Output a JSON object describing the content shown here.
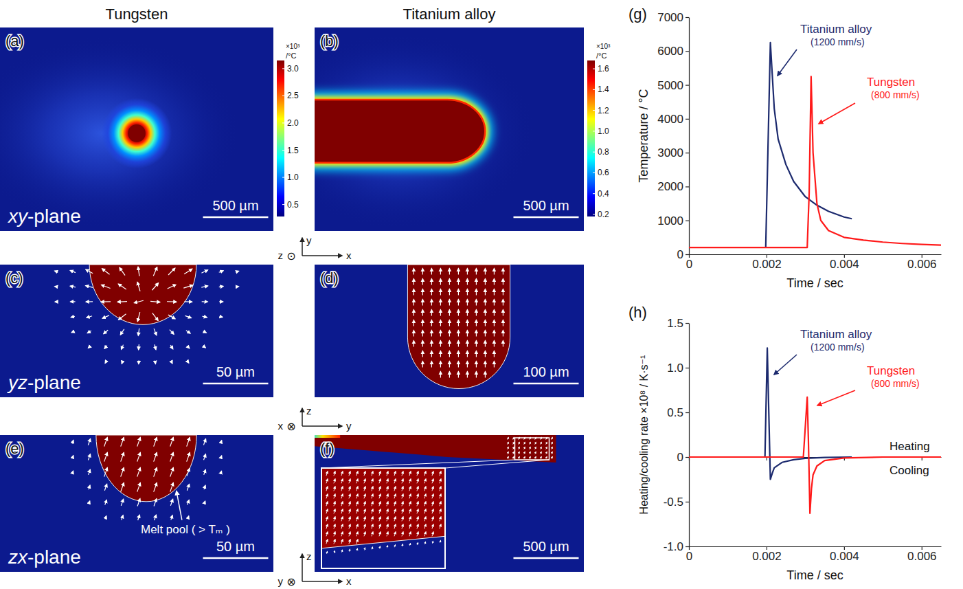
{
  "chart_data": [
    {
      "type": "field",
      "panel": "(a)",
      "heading": "Tungsten",
      "plane": "xy-plane",
      "marker": "circle",
      "melt_pool": {
        "width": 135
      },
      "scale_bar": {
        "value": 500,
        "label": "500 µm"
      },
      "colorbar": {
        "title": [
          "×10³",
          "/°C"
        ],
        "range": [
          0.28,
          3.15
        ],
        "ticks": [
          0.5,
          {
            "value": 1,
            "label": "1.0"
          },
          1.5,
          {
            "value": 2,
            "label": "2.0"
          },
          2.5,
          {
            "value": 3,
            "label": "3.0"
          }
        ]
      }
    },
    {
      "type": "field",
      "panel": "(b)",
      "heading": "Titanium alloy",
      "marker": "slot",
      "melt_pool": {
        "width": 470,
        "length": 1300
      },
      "scale_bar": {
        "value": 500,
        "label": "500 µm"
      },
      "colorbar": {
        "title": [
          "×10³",
          "/°C"
        ],
        "range": [
          0.18,
          1.68
        ],
        "ticks": [
          0.2,
          0.4,
          0.6,
          0.8,
          {
            "value": 1,
            "label": "1.0"
          },
          1.2,
          1.4,
          1.6
        ]
      },
      "axes": {
        "up": "y",
        "right": "x",
        "normal": "z",
        "normal_symbol": "⊙"
      }
    },
    {
      "type": "field",
      "panel": "(c)",
      "plane": "yz-plane",
      "marker": "bowl",
      "melt_pool": {
        "width": 82,
        "depth": 46
      },
      "scale_bar": {
        "value": 50,
        "label": "50 µm"
      }
    },
    {
      "type": "field",
      "panel": "(d)",
      "marker": "u-shape",
      "melt_pool": {
        "width": 157,
        "depth": 190
      },
      "scale_bar": {
        "value": 100,
        "label": "100 µm"
      },
      "axes": {
        "up": "z",
        "right": "y",
        "normal": "x",
        "normal_symbol": "⊗"
      }
    },
    {
      "type": "field",
      "panel": "(e)",
      "plane": "zx-plane",
      "marker": "bowl",
      "melt_pool": {
        "width": 77,
        "depth": 51
      },
      "scale_bar": {
        "value": 50,
        "label": "50 µm"
      },
      "annotation": "Melt pool ( > Tₘ )"
    },
    {
      "type": "field",
      "panel": "(f)",
      "marker": "wedge",
      "melt_pool": {
        "length": 1850,
        "depth": 210
      },
      "scale_bar": {
        "value": 500,
        "label": "500 µm"
      },
      "axes": {
        "up": "z",
        "right": "x",
        "normal": "y",
        "normal_symbol": "⊗"
      }
    },
    {
      "type": "line",
      "panel": "(g)",
      "xlabel": "Time / sec",
      "ylabel": "Temperature / °C",
      "xlim": [
        0,
        0.0065
      ],
      "ylim": [
        0,
        7000
      ],
      "xticks": [
        0,
        0.002,
        0.004,
        0.006
      ],
      "yticks": [
        0,
        1000,
        2000,
        3000,
        4000,
        5000,
        6000,
        7000
      ],
      "series": [
        {
          "name": "Titanium alloy",
          "annotation": "(1200 mm/s)",
          "color": "#1c2a6e",
          "x": [
            0.00198,
            0.0021,
            0.0022,
            0.0023,
            0.0025,
            0.0027,
            0.003,
            0.0033,
            0.0036,
            0.004,
            0.0042
          ],
          "values": [
            200,
            6250,
            4300,
            3400,
            2650,
            2150,
            1700,
            1450,
            1270,
            1100,
            1050
          ]
        },
        {
          "name": "Tungsten",
          "annotation": "(800 mm/s)",
          "color": "#ff1a1a",
          "x": [
            0,
            0.00305,
            0.0031,
            0.00315,
            0.0032,
            0.0033,
            0.0034,
            0.0036,
            0.004,
            0.0045,
            0.005,
            0.0055,
            0.006,
            0.0065
          ],
          "values": [
            200,
            200,
            1800,
            5250,
            3000,
            1500,
            1000,
            700,
            500,
            420,
            360,
            320,
            290,
            270
          ]
        }
      ]
    },
    {
      "type": "line",
      "panel": "(h)",
      "xlabel": "Time / sec",
      "ylabel": "Heating/cooling rate ×10⁸ / K·s⁻¹",
      "xlim": [
        0,
        0.0065
      ],
      "ylim": [
        -1,
        1.5
      ],
      "xticks": [
        0,
        0.002,
        0.004,
        0.006
      ],
      "yticks": [
        {
          "value": -1,
          "label": "-1.0"
        },
        -0.5,
        0,
        0.5,
        {
          "value": 1,
          "label": "1.0"
        },
        1.5
      ],
      "annotations": [
        "Heating",
        "Cooling"
      ],
      "series": [
        {
          "name": "Titanium alloy",
          "annotation": "(1200 mm/s)",
          "color": "#1c2a6e",
          "x": [
            0.0019,
            0.00196,
            0.00202,
            0.0021,
            0.00215,
            0.0022,
            0.0024,
            0.0027,
            0.003,
            0.0035,
            0.0042
          ],
          "values": [
            0,
            0,
            1.22,
            -0.25,
            -0.18,
            -0.12,
            -0.06,
            -0.03,
            -0.015,
            -0.005,
            0
          ]
        },
        {
          "name": "Tungsten",
          "annotation": "(800 mm/s)",
          "color": "#ff1a1a",
          "x": [
            0,
            0.00295,
            0.00305,
            0.00308,
            0.00312,
            0.00316,
            0.0032,
            0.0033,
            0.0035,
            0.004,
            0.005,
            0.0065
          ],
          "values": [
            0,
            0,
            0.67,
            0.2,
            -0.63,
            -0.35,
            -0.2,
            -0.1,
            -0.04,
            -0.01,
            0,
            0
          ]
        }
      ]
    }
  ]
}
